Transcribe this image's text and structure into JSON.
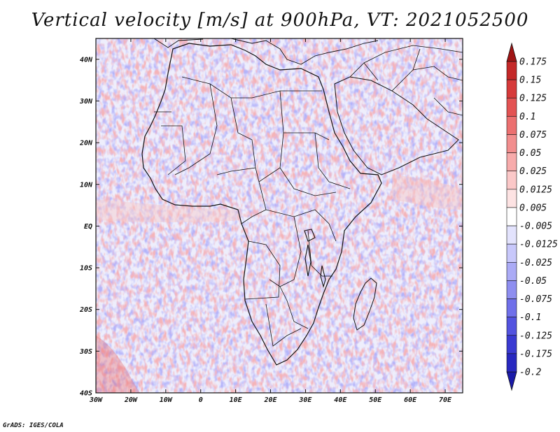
{
  "title": "Vertical velocity [m/s] at 900hPa, VT: 2021052500",
  "credit": "GrADS: IGES/COLA",
  "map": {
    "lon_range": [
      -30,
      75
    ],
    "lat_range": [
      -40,
      45
    ],
    "lat_ticks": [
      {
        "value": 40,
        "label": "40N"
      },
      {
        "value": 30,
        "label": "30N"
      },
      {
        "value": 20,
        "label": "20N"
      },
      {
        "value": 10,
        "label": "10N"
      },
      {
        "value": 0,
        "label": "EQ"
      },
      {
        "value": -10,
        "label": "10S"
      },
      {
        "value": -20,
        "label": "20S"
      },
      {
        "value": -30,
        "label": "30S"
      },
      {
        "value": -40,
        "label": "40S"
      }
    ],
    "lon_ticks": [
      {
        "value": -30,
        "label": "30W"
      },
      {
        "value": -20,
        "label": "20W"
      },
      {
        "value": -10,
        "label": "10W"
      },
      {
        "value": 0,
        "label": "0"
      },
      {
        "value": 10,
        "label": "10E"
      },
      {
        "value": 20,
        "label": "20E"
      },
      {
        "value": 30,
        "label": "30E"
      },
      {
        "value": 40,
        "label": "40E"
      },
      {
        "value": 50,
        "label": "50E"
      },
      {
        "value": 60,
        "label": "60E"
      },
      {
        "value": 70,
        "label": "70E"
      }
    ]
  },
  "colorbar": {
    "levels": [
      {
        "label": "0.175",
        "color": "#b01c1c"
      },
      {
        "label": "0.15",
        "color": "#c42828"
      },
      {
        "label": "0.125",
        "color": "#d63a3a"
      },
      {
        "label": "0.1",
        "color": "#e35353"
      },
      {
        "label": "0.075",
        "color": "#ec7070"
      },
      {
        "label": "0.05",
        "color": "#f28e8e"
      },
      {
        "label": "0.025",
        "color": "#f7abab"
      },
      {
        "label": "0.0125",
        "color": "#fbc8c8"
      },
      {
        "label": "0.005",
        "color": "#fde3e3"
      },
      {
        "label": "-0.005",
        "color": "#ffffff"
      },
      {
        "label": "-0.0125",
        "color": "#e3e3fd"
      },
      {
        "label": "-0.025",
        "color": "#c8c8fb"
      },
      {
        "label": "-0.05",
        "color": "#ababf6"
      },
      {
        "label": "-0.075",
        "color": "#8e8ef0"
      },
      {
        "label": "-0.1",
        "color": "#7070ea"
      },
      {
        "label": "-0.125",
        "color": "#5353e0"
      },
      {
        "label": "-0.175",
        "color": "#3a3ad2"
      },
      {
        "label": "-0.2",
        "color": "#2828c0"
      }
    ],
    "top_triangle_color": "#a01414",
    "bottom_triangle_color": "#1a1aa8"
  }
}
